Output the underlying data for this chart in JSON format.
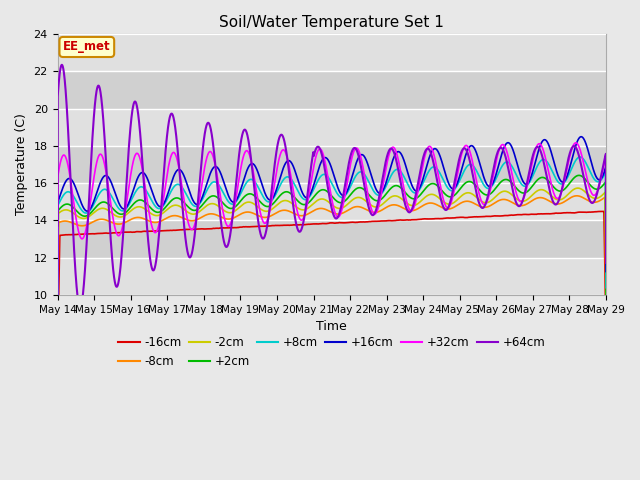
{
  "title": "Soil/Water Temperature Set 1",
  "xlabel": "Time",
  "ylabel": "Temperature (C)",
  "ylim": [
    10,
    24
  ],
  "xlim": [
    0,
    15
  ],
  "yticks": [
    10,
    12,
    14,
    16,
    18,
    20,
    22,
    24
  ],
  "xtick_labels": [
    "May 14",
    "May 15",
    "May 16",
    "May 17",
    "May 18",
    "May 19",
    "May 20",
    "May 21",
    "May 22",
    "May 23",
    "May 24",
    "May 25",
    "May 26",
    "May 27",
    "May 28",
    "May 29"
  ],
  "background_color": "#e8e8e8",
  "plot_bg_color": "#e0e0e0",
  "band_colors": [
    "#e0e0e0",
    "#d0d0d0"
  ],
  "annotation_text": "EE_met",
  "annotation_bg": "#ffffcc",
  "annotation_border": "#cc8800",
  "colors": {
    "-16cm": "#dd0000",
    "-8cm": "#ff8800",
    "-2cm": "#cccc00",
    "+2cm": "#00bb00",
    "+8cm": "#00cccc",
    "+16cm": "#0000cc",
    "+32cm": "#ff00ff",
    "+64cm": "#8800cc"
  }
}
